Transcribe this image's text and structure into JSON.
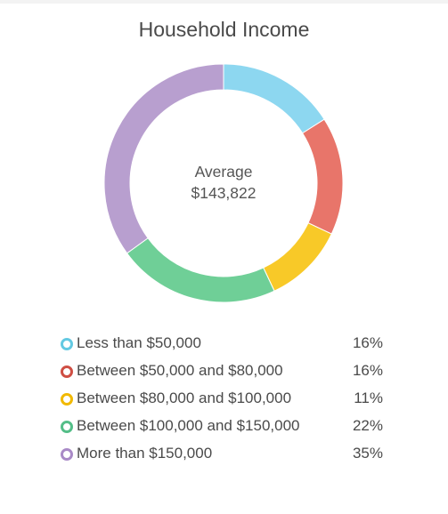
{
  "chart_data": {
    "type": "pie",
    "title": "Household Income",
    "center": {
      "line1": "Average",
      "line2": "$143,822"
    },
    "categories": [
      "Less than $50,000",
      "Between $50,000 and $80,000",
      "Between $80,000 and $100,000",
      "Between $100,000 and $150,000",
      "More than $150,000"
    ],
    "values": [
      16,
      16,
      11,
      22,
      35
    ],
    "value_labels": [
      "16%",
      "16%",
      "11%",
      "22%",
      "35%"
    ],
    "colors": [
      "#8dd7f0",
      "#e8756a",
      "#f8c928",
      "#6fcf97",
      "#b89fcf"
    ],
    "marker_colors": [
      "#63c9e2",
      "#cf4f44",
      "#f1b900",
      "#54be88",
      "#a98ac7"
    ],
    "legend_position": "bottom"
  }
}
